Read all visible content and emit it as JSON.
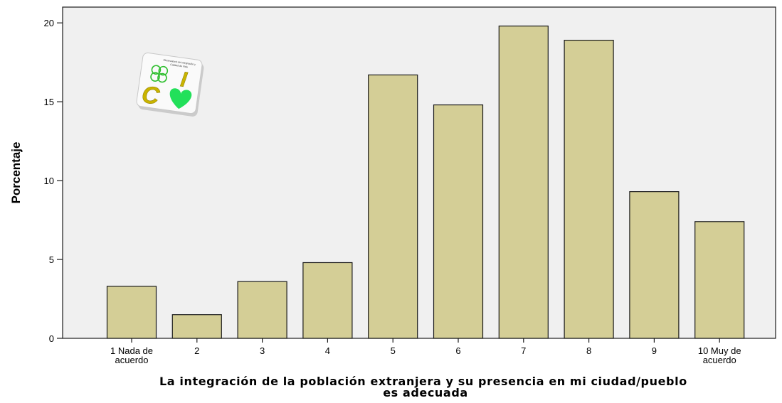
{
  "chart_data": {
    "type": "bar",
    "categories": [
      "1 Nada de acuerdo",
      "2",
      "3",
      "4",
      "5",
      "6",
      "7",
      "8",
      "9",
      "10 Muy de acuerdo"
    ],
    "category_lines": [
      [
        "1 Nada de",
        "acuerdo"
      ],
      [
        "2"
      ],
      [
        "3"
      ],
      [
        "4"
      ],
      [
        "5"
      ],
      [
        "6"
      ],
      [
        "7"
      ],
      [
        "8"
      ],
      [
        "9"
      ],
      [
        "10 Muy de",
        "acuerdo"
      ]
    ],
    "values": [
      3.3,
      1.5,
      3.6,
      4.8,
      16.7,
      14.8,
      19.8,
      18.9,
      9.3,
      7.4
    ],
    "ylabel": "Porcentaje",
    "xlabel_lines": [
      "La integración de la población extranjera y su presencia en mi ciudad/pueblo",
      "es adecuada"
    ],
    "ylim": [
      0,
      21
    ],
    "yticks": [
      0,
      5,
      10,
      15,
      20
    ],
    "grid": false,
    "colors": {
      "bar_fill": "#d4ce96",
      "bar_stroke": "#1a1a1a",
      "plot_bg": "#f0f0f0"
    }
  },
  "logo": {
    "caption_lines": [
      "Observatorio de Integración y",
      "Calidad de Vida"
    ],
    "letters": [
      "C",
      "I"
    ],
    "icons": [
      "clover-icon",
      "heart-icon"
    ]
  }
}
